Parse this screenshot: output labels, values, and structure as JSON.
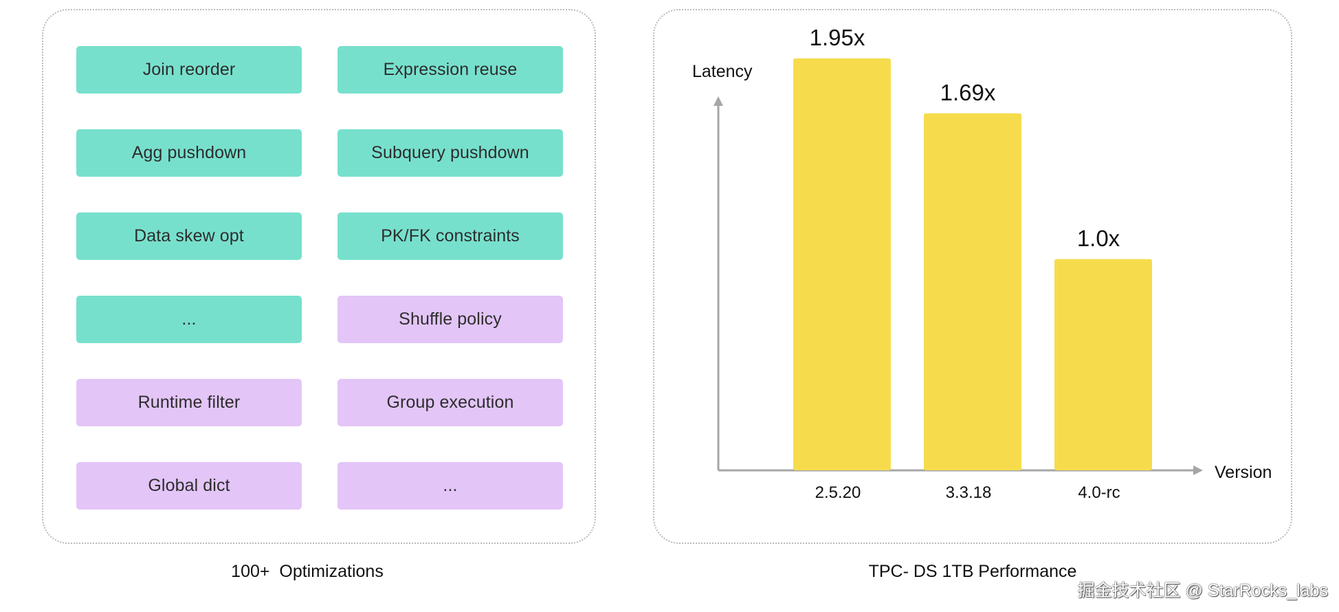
{
  "left": {
    "tiles": [
      {
        "label": "Join reorder",
        "color": "#77e0cd"
      },
      {
        "label": "Expression reuse",
        "color": "#77e0cd"
      },
      {
        "label": "Agg pushdown",
        "color": "#77e0cd"
      },
      {
        "label": "Subquery pushdown",
        "color": "#77e0cd"
      },
      {
        "label": "Data skew opt",
        "color": "#77e0cd"
      },
      {
        "label": "PK/FK constraints",
        "color": "#77e0cd"
      },
      {
        "label": "...",
        "color": "#77e0cd"
      },
      {
        "label": "Shuffle policy",
        "color": "#e3c5f7"
      },
      {
        "label": "Runtime filter",
        "color": "#e3c5f7"
      },
      {
        "label": "Group execution",
        "color": "#e3c5f7"
      },
      {
        "label": "Global dict",
        "color": "#e3c5f7"
      },
      {
        "label": "...",
        "color": "#e3c5f7"
      }
    ],
    "caption": "100+  Optimizations"
  },
  "chart_data": {
    "type": "bar",
    "categories": [
      "2.5.20",
      "3.3.18",
      "4.0-rc"
    ],
    "values": [
      1.95,
      1.69,
      1.0
    ],
    "value_labels": [
      "1.95x",
      "1.69x",
      "1.0x"
    ],
    "xlabel": "Version",
    "ylabel": "Latency",
    "ylim": [
      0,
      2.2
    ],
    "grid": false,
    "bar_color": "#f6dc4d",
    "caption": "TPC- DS 1TB Performance"
  },
  "watermark": "掘金技术社区 @ StarRocks_labs"
}
